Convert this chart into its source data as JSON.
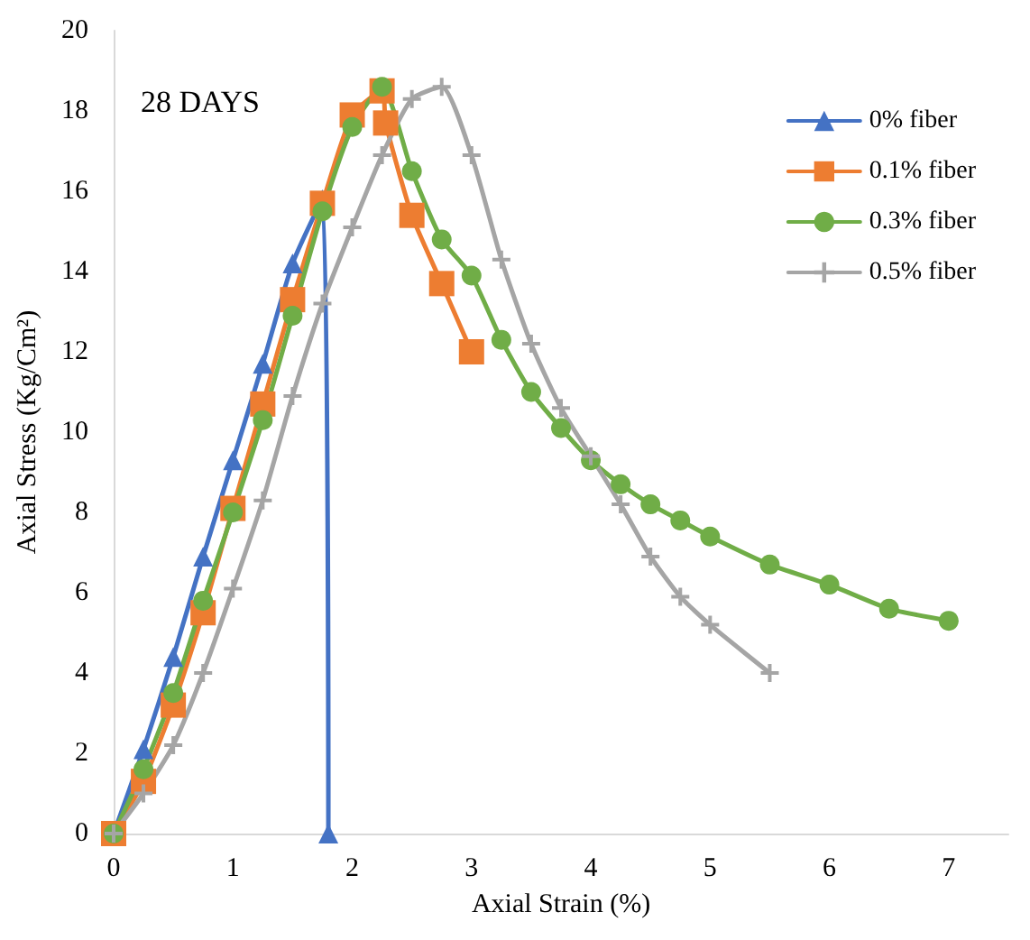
{
  "chart_data": {
    "type": "line",
    "annotations": [
      "28 DAYS"
    ],
    "xlabel": "Axial Strain (%)",
    "ylabel": "Axial Stress (Kg/Cm²)",
    "xlim": [
      0,
      7.5
    ],
    "xticks": [
      0,
      1,
      2,
      3,
      4,
      5,
      6,
      7
    ],
    "ylim": [
      0,
      20
    ],
    "yticks": [
      0,
      2,
      4,
      6,
      8,
      10,
      12,
      14,
      16,
      18,
      20
    ],
    "grid": false,
    "legend": "top right",
    "line_style": "solid",
    "series": [
      {
        "name": "0% fiber",
        "color": "#4472c4",
        "marker": "triangle",
        "x": [
          0,
          0.25,
          0.5,
          0.75,
          1,
          1.25,
          1.5,
          1.75,
          1.8
        ],
        "values": [
          0,
          2.1,
          4.4,
          6.9,
          9.3,
          11.7,
          14.2,
          15.8,
          0
        ]
      },
      {
        "name": "0.1% fiber",
        "color": "#ed7d31",
        "marker": "square",
        "x": [
          0,
          0.25,
          0.5,
          0.75,
          1,
          1.25,
          1.5,
          1.75,
          2,
          2.25,
          2.28,
          2.5,
          2.75,
          3
        ],
        "values": [
          0,
          1.3,
          3.2,
          5.5,
          8.1,
          10.7,
          13.3,
          15.7,
          17.9,
          18.5,
          17.7,
          15.4,
          13.7,
          12
        ]
      },
      {
        "name": "0.3% fiber",
        "color": "#70ad47",
        "marker": "circle",
        "x": [
          0,
          0.25,
          0.5,
          0.75,
          1,
          1.25,
          1.5,
          1.75,
          2,
          2.25,
          2.5,
          2.75,
          3,
          3.25,
          3.5,
          3.75,
          4,
          4.25,
          4.5,
          4.75,
          5,
          5.5,
          6,
          6.5,
          7
        ],
        "values": [
          0,
          1.6,
          3.5,
          5.8,
          8,
          10.3,
          12.9,
          15.5,
          17.6,
          18.6,
          16.5,
          14.8,
          13.9,
          12.3,
          11,
          10.1,
          9.3,
          8.7,
          8.2,
          7.8,
          7.4,
          6.7,
          6.2,
          5.6,
          5.3
        ]
      },
      {
        "name": "0.5% fiber",
        "color": "#a5a5a5",
        "marker": "cross",
        "x": [
          0,
          0.25,
          0.5,
          0.75,
          1,
          1.25,
          1.5,
          1.75,
          2,
          2.25,
          2.5,
          2.75,
          3,
          3.25,
          3.5,
          3.75,
          4,
          4.25,
          4.5,
          4.75,
          5,
          5.5
        ],
        "values": [
          0,
          1,
          2.2,
          4,
          6.1,
          8.3,
          10.9,
          13.2,
          15.1,
          16.9,
          18.3,
          18.6,
          16.9,
          14.3,
          12.2,
          10.6,
          9.4,
          8.2,
          6.9,
          5.9,
          5.2,
          4
        ]
      }
    ]
  }
}
